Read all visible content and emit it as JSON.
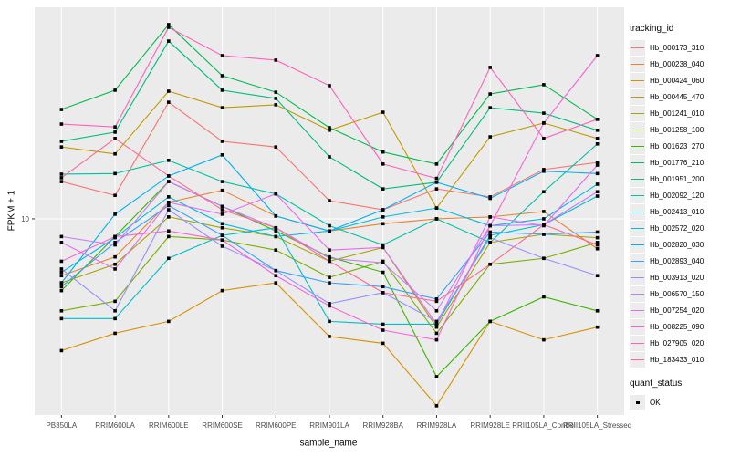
{
  "chart_data": {
    "type": "line",
    "title": "",
    "xlabel": "sample_name",
    "ylabel": "FPKM + 1",
    "y_scale": "log10",
    "ylim": [
      1.27,
      92.6
    ],
    "y_ticks": [
      {
        "value": 10,
        "label": "10"
      }
    ],
    "grid": "major-only",
    "panel_bg": "#EBEBEB",
    "grid_color": "#FFFFFF",
    "tick_label_color": "#4D4D4D",
    "marker": "filled-black-square",
    "legend_position": "right",
    "categories": [
      "PB350LA",
      "RRIM600LA",
      "RRIM600LE",
      "RRIM600SE",
      "RRIM600PE",
      "RRIM901LA",
      "RRIM928BA",
      "RRIM928LA",
      "RRIM928LE",
      "RRII105LA_Control",
      "RRII105LA_Stressed"
    ],
    "series": [
      {
        "name": "Hb_000173_310",
        "color": "#F8766D",
        "values": [
          14.8,
          12.8,
          34.1,
          22.6,
          21.3,
          12.1,
          11.0,
          13.7,
          12.6,
          16.8,
          18.1
        ]
      },
      {
        "name": "Hb_000238_040",
        "color": "#EA8331",
        "values": [
          5.5,
          6.7,
          11.9,
          13.5,
          10.3,
          8.8,
          9.5,
          10.0,
          10.2,
          10.8,
          7.3
        ]
      },
      {
        "name": "Hb_000424_060",
        "color": "#D89000",
        "values": [
          2.5,
          3.0,
          3.4,
          4.7,
          5.1,
          2.9,
          2.7,
          1.4,
          3.4,
          2.8,
          3.2
        ]
      },
      {
        "name": "Hb_000445_470",
        "color": "#C09B00",
        "values": [
          21.3,
          19.8,
          38.3,
          32.2,
          33.2,
          25.4,
          30.7,
          11.2,
          23.7,
          27.4,
          23.3
        ]
      },
      {
        "name": "Hb_001241_010",
        "color": "#A3A500",
        "values": [
          5.1,
          6.2,
          10.2,
          9.1,
          8.3,
          6.4,
          7.4,
          3.2,
          7.8,
          8.5,
          8.2
        ]
      },
      {
        "name": "Hb_001258_100",
        "color": "#7CAE00",
        "values": [
          3.8,
          4.2,
          8.3,
          8.0,
          7.2,
          5.4,
          6.4,
          3.0,
          6.2,
          6.6,
          7.8
        ]
      },
      {
        "name": "Hb_001623_270",
        "color": "#39B600",
        "values": [
          4.7,
          8.3,
          14.8,
          11.4,
          8.8,
          6.7,
          5.7,
          1.9,
          3.4,
          4.4,
          3.8
        ]
      },
      {
        "name": "Hb_001776_210",
        "color": "#00BB4E",
        "values": [
          31.6,
          38.7,
          77.2,
          45.1,
          37.9,
          26.1,
          20.2,
          17.8,
          37.2,
          41.0,
          28.5
        ]
      },
      {
        "name": "Hb_001951_200",
        "color": "#00BF7D",
        "values": [
          22.6,
          24.9,
          64.9,
          38.7,
          35.5,
          19.2,
          13.7,
          14.7,
          32.2,
          30.4,
          25.4
        ]
      },
      {
        "name": "Hb_002092_120",
        "color": "#00C1A3",
        "values": [
          16.0,
          16.1,
          18.5,
          14.8,
          13.0,
          9.3,
          7.6,
          10.0,
          7.8,
          13.3,
          22.0
        ]
      },
      {
        "name": "Hb_002413_010",
        "color": "#00BFC4",
        "values": [
          3.5,
          3.5,
          6.6,
          8.4,
          9.1,
          3.4,
          3.3,
          3.3,
          8.4,
          9.4,
          12.7
        ]
      },
      {
        "name": "Hb_002572_020",
        "color": "#00BAE0",
        "values": [
          5.7,
          8.2,
          12.6,
          9.5,
          8.3,
          8.8,
          10.2,
          11.2,
          9.3,
          10.0,
          14.4
        ]
      },
      {
        "name": "Hb_002820_030",
        "color": "#00B0F6",
        "values": [
          5.1,
          10.5,
          15.7,
          19.6,
          10.3,
          8.8,
          11.0,
          14.7,
          12.4,
          16.5,
          16.1
        ]
      },
      {
        "name": "Hb_002893_040",
        "color": "#35A2FF",
        "values": [
          4.9,
          7.8,
          11.5,
          8.4,
          5.8,
          5.1,
          4.9,
          4.3,
          8.7,
          8.5,
          8.7
        ]
      },
      {
        "name": "Hb_003913_020",
        "color": "#9590FF",
        "values": [
          5.9,
          3.8,
          11.0,
          7.5,
          5.8,
          4.1,
          4.6,
          3.4,
          8.2,
          6.6,
          5.5
        ]
      },
      {
        "name": "Hb_006570_150",
        "color": "#C77CFF",
        "values": [
          8.3,
          7.6,
          14.8,
          11.4,
          9.1,
          6.6,
          6.3,
          3.8,
          9.3,
          9.4,
          13.3
        ]
      },
      {
        "name": "Hb_007254_020",
        "color": "#E76BF3",
        "values": [
          7.8,
          5.9,
          11.9,
          10.5,
          13.0,
          7.2,
          7.4,
          3.3,
          10.2,
          9.3,
          17.6
        ]
      },
      {
        "name": "Hb_008225_090",
        "color": "#FA62DB",
        "values": [
          6.4,
          8.3,
          8.8,
          8.0,
          5.5,
          4.0,
          3.1,
          2.8,
          9.3,
          27.4,
          55.7
        ]
      },
      {
        "name": "Hb_027905_020",
        "color": "#FF62BC",
        "values": [
          27.1,
          26.3,
          75.0,
          55.7,
          53.1,
          40.6,
          17.8,
          15.3,
          49.2,
          23.3,
          28.5
        ]
      },
      {
        "name": "Hb_183433_010",
        "color": "#FF6A98",
        "values": [
          15.4,
          23.3,
          15.7,
          11.0,
          9.1,
          6.4,
          4.6,
          4.2,
          6.2,
          9.4,
          7.6
        ]
      }
    ],
    "legend": {
      "color_title": "tracking_id",
      "shape_title": "quant_status",
      "shape_items": [
        {
          "label": "OK",
          "marker": "black-square"
        }
      ]
    }
  }
}
